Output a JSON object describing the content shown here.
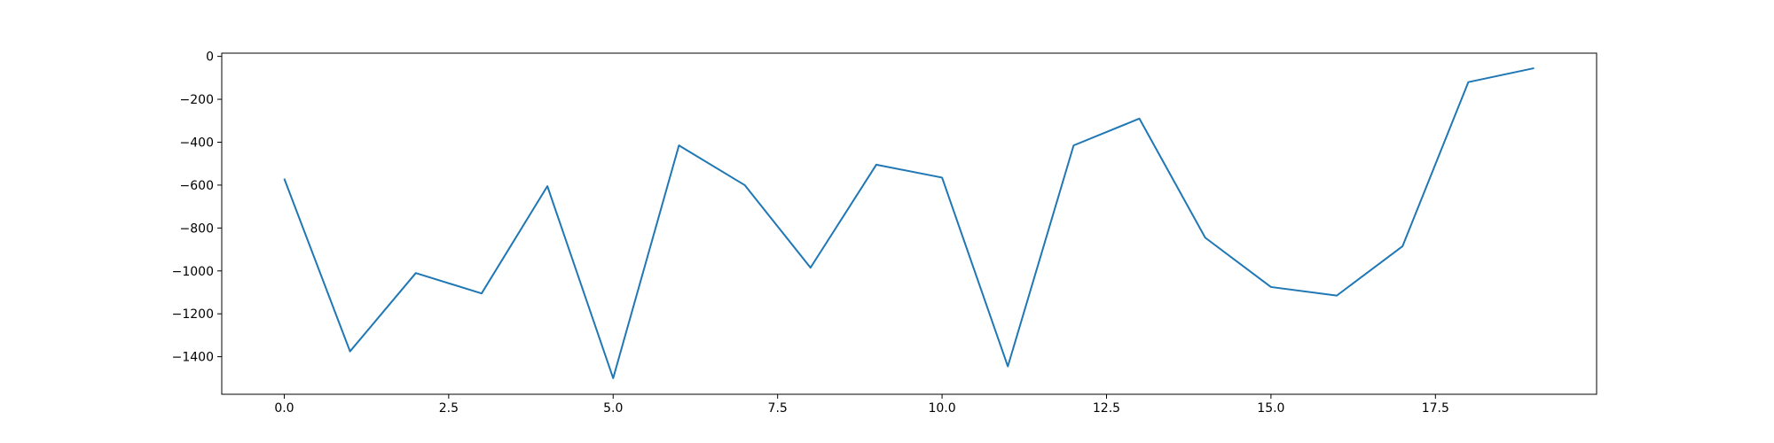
{
  "chart_data": {
    "type": "line",
    "title": "",
    "xlabel": "",
    "ylabel": "",
    "xlim": [
      -0.95,
      19.95
    ],
    "ylim": [
      -1575,
      15
    ],
    "grid": false,
    "x_ticks": [
      0.0,
      2.5,
      5.0,
      7.5,
      10.0,
      12.5,
      15.0,
      17.5
    ],
    "x_tick_labels": [
      "0.0",
      "2.5",
      "5.0",
      "7.5",
      "10.0",
      "12.5",
      "15.0",
      "17.5"
    ],
    "y_ticks": [
      0,
      -200,
      -400,
      -600,
      -800,
      -1000,
      -1200,
      -1400
    ],
    "y_tick_labels": [
      "0",
      "−200",
      "−400",
      "−600",
      "−800",
      "−1000",
      "−1200",
      "−1400"
    ],
    "series": [
      {
        "color": "#1f77b4",
        "x": [
          0,
          1,
          2,
          3,
          4,
          5,
          6,
          7,
          8,
          9,
          10,
          11,
          12,
          13,
          14,
          15,
          16,
          17,
          18,
          19
        ],
        "values": [
          -570,
          -1375,
          -1010,
          -1105,
          -605,
          -1500,
          -415,
          -600,
          -985,
          -505,
          -565,
          -1445,
          -415,
          -290,
          -845,
          -1075,
          -1115,
          -885,
          -120,
          -55
        ]
      }
    ]
  }
}
